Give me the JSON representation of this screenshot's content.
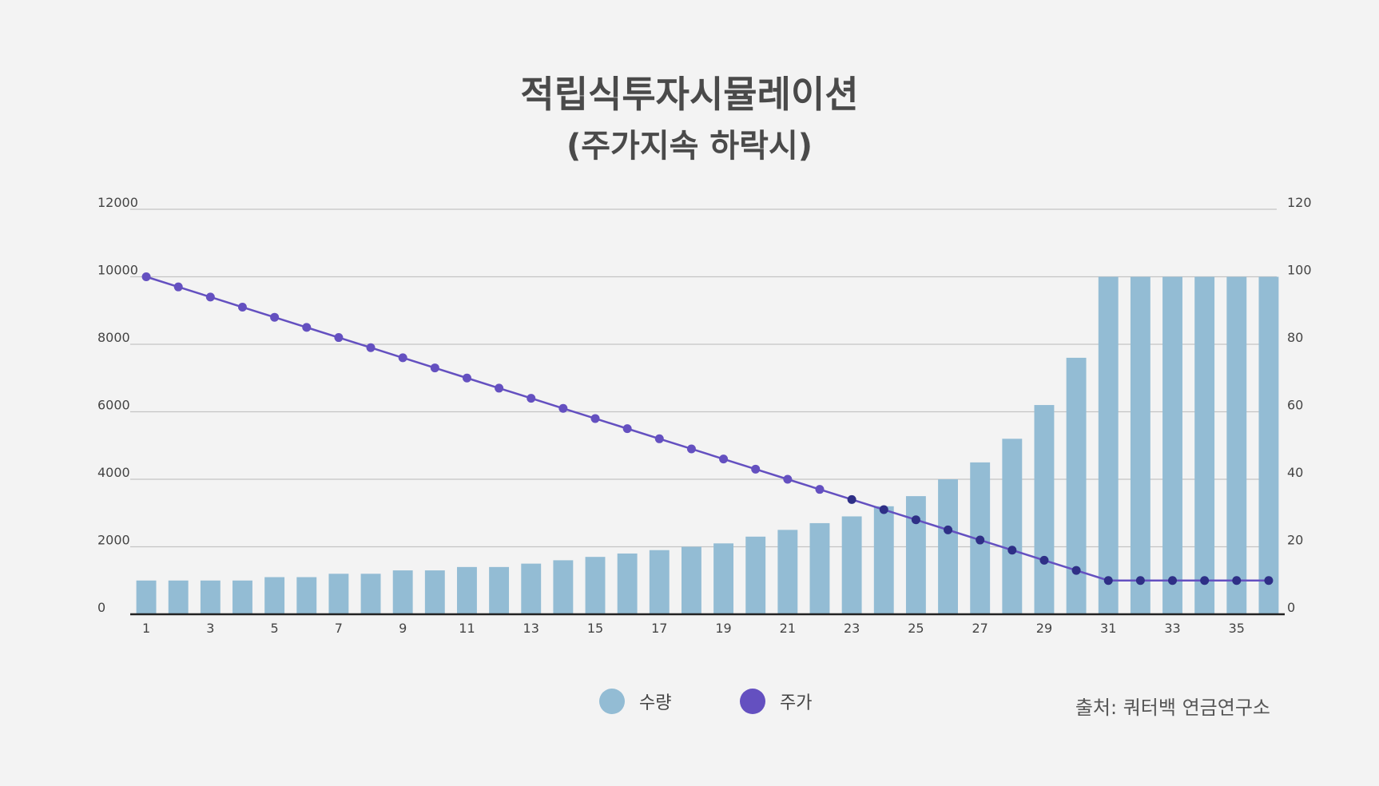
{
  "chart_data": {
    "type": "bar+line",
    "title": "적립식투자시뮬레이션",
    "subtitle": "(주가지속 하락시)",
    "x": [
      1,
      2,
      3,
      4,
      5,
      6,
      7,
      8,
      9,
      10,
      11,
      12,
      13,
      14,
      15,
      16,
      17,
      18,
      19,
      20,
      21,
      22,
      23,
      24,
      25,
      26,
      27,
      28,
      29,
      30,
      31,
      32,
      33,
      34,
      35,
      36
    ],
    "x_tick_labels": [
      "1",
      "3",
      "5",
      "7",
      "9",
      "11",
      "13",
      "15",
      "17",
      "19",
      "21",
      "23",
      "25",
      "27",
      "29",
      "31",
      "33",
      "35"
    ],
    "y_left": {
      "ylim": [
        0,
        12000
      ],
      "ticks": [
        "0",
        "2000",
        "4000",
        "6000",
        "8000",
        "10000",
        "12000"
      ]
    },
    "y_right": {
      "ylim": [
        0,
        120
      ],
      "ticks": [
        "0",
        "20",
        "40",
        "60",
        "80",
        "100",
        "120"
      ]
    },
    "grid": true,
    "legend_position": "bottom",
    "series": [
      {
        "name": "수량",
        "type": "bar",
        "axis": "left",
        "color": "#93bcd4",
        "values": [
          1000,
          1000,
          1000,
          1000,
          1100,
          1100,
          1200,
          1200,
          1300,
          1300,
          1400,
          1400,
          1500,
          1600,
          1700,
          1800,
          1900,
          2000,
          2100,
          2300,
          2500,
          2700,
          2900,
          3200,
          3500,
          4000,
          4500,
          5200,
          6200,
          7600,
          10000,
          10000,
          10000,
          10000,
          10000,
          10000
        ]
      },
      {
        "name": "주가",
        "type": "line",
        "axis": "right",
        "color": "#6450c0",
        "marker_color": "#2e2f86",
        "values": [
          100,
          97,
          94,
          91,
          88,
          85,
          82,
          79,
          76,
          73,
          70,
          67,
          64,
          61,
          58,
          55,
          52,
          49,
          46,
          43,
          40,
          37,
          34,
          31,
          28,
          25,
          22,
          19,
          16,
          13,
          10,
          10,
          10,
          10,
          10,
          10
        ]
      }
    ]
  },
  "legend": [
    {
      "label": "수량",
      "color": "#93bcd4"
    },
    {
      "label": "주가",
      "color": "#6450c0"
    }
  ],
  "source": "출처: 쿼터백 연금연구소"
}
